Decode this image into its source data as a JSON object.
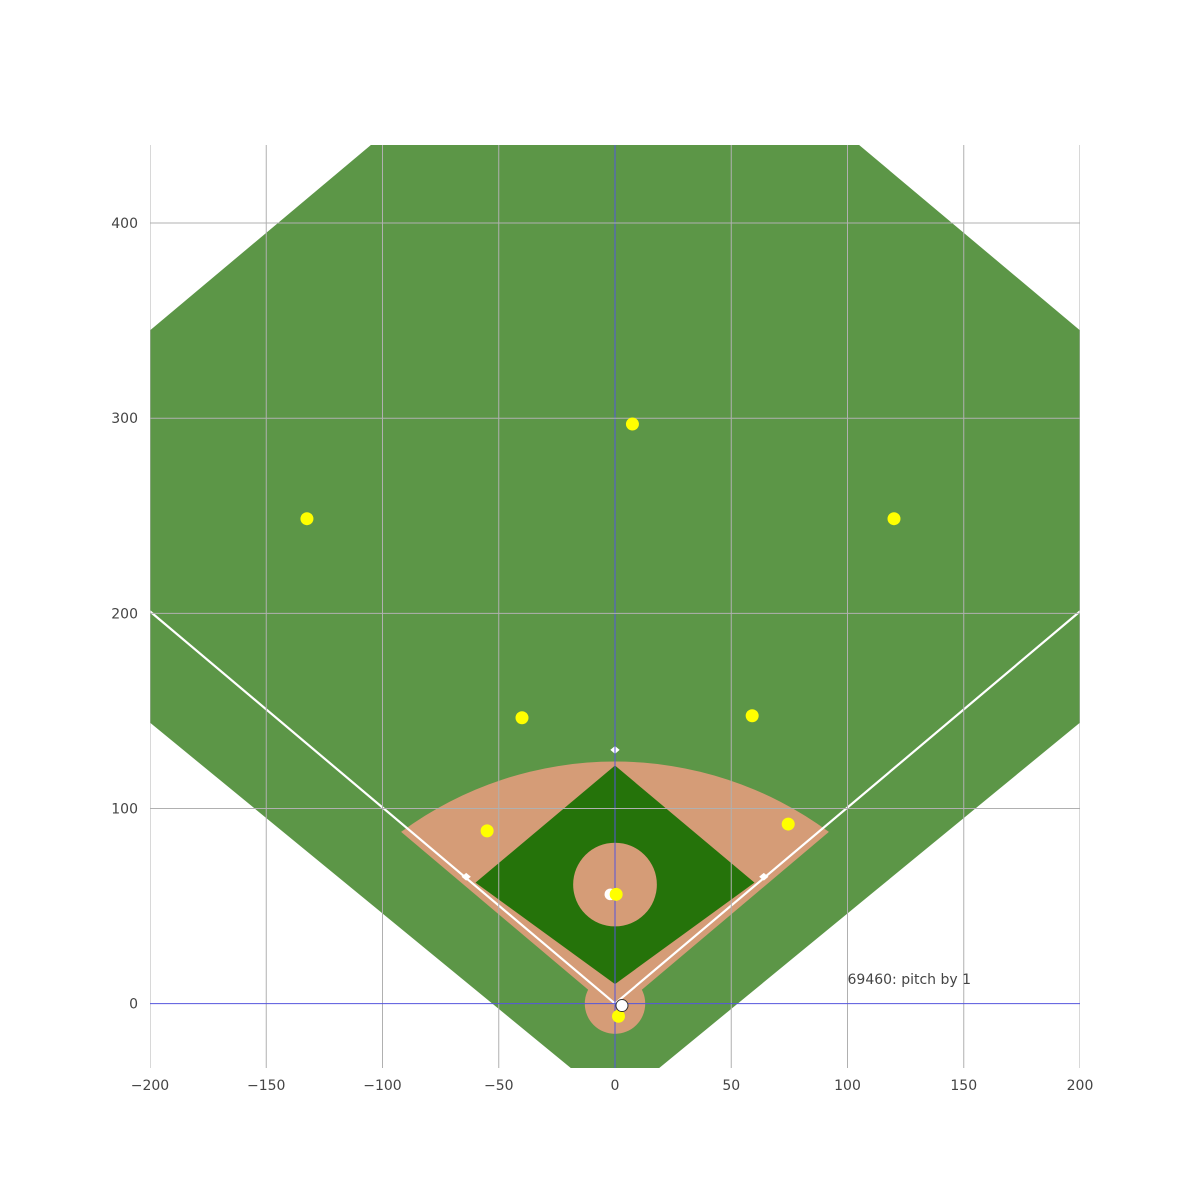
{
  "chart_data": {
    "type": "scatter",
    "title": "",
    "xlabel": "",
    "ylabel": "",
    "xlim": [
      -200,
      200
    ],
    "ylim": [
      -33,
      440
    ],
    "grid": true,
    "x_ticks": [
      -200,
      -150,
      -100,
      -50,
      0,
      50,
      100,
      150,
      200
    ],
    "x_tick_labels": [
      "−200",
      "−150",
      "−100",
      "−50",
      "0",
      "50",
      "100",
      "150",
      "200"
    ],
    "y_ticks": [
      0,
      100,
      200,
      300,
      400
    ],
    "y_tick_labels": [
      "0",
      "100",
      "200",
      "300",
      "400"
    ],
    "annotation": {
      "text": "69460: pitch by 1",
      "x": 100,
      "y": 10
    },
    "series": [
      {
        "marker_color": "#ffff00",
        "points": [
          {
            "x": 7.5,
            "y": 297
          },
          {
            "x": -132.5,
            "y": 248.5
          },
          {
            "x": 120,
            "y": 248.5
          },
          {
            "x": -40,
            "y": 146.5
          },
          {
            "x": 59,
            "y": 147.5
          },
          {
            "x": -55,
            "y": 88.5
          },
          {
            "x": 74.5,
            "y": 92
          },
          {
            "x": 0.5,
            "y": 56
          },
          {
            "x": 1.5,
            "y": -6.5
          }
        ]
      }
    ],
    "ball": {
      "x": 3,
      "y": -1,
      "color": "#ffffff"
    },
    "colors": {
      "outfield": "#5c9647",
      "infield_dirt": "#d59c77",
      "infield_grass": "#25730a",
      "lines": "#ffffff",
      "grid": "#b0b0b0",
      "axis_zero": "#5555dd",
      "player": "#ffff00"
    }
  }
}
